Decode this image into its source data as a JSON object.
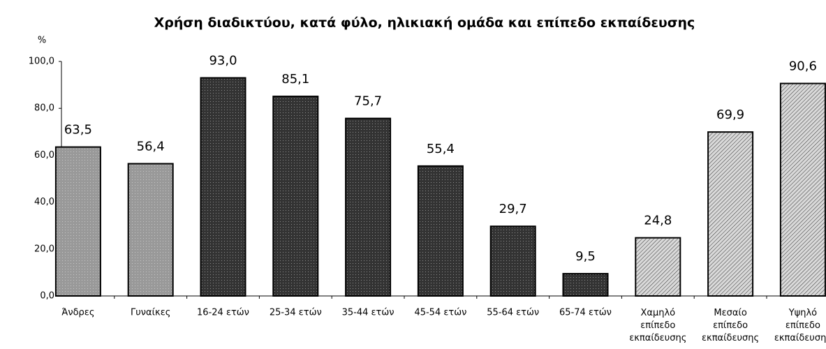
{
  "chart_data": {
    "type": "bar",
    "title": "Χρήση διαδικτύου,  κατά φύλο, ηλικιακή ομάδα και επίπεδο εκπαίδευσης",
    "y_label": "%",
    "categories": [
      "Άνδρες",
      "Γυναίκες",
      "16-24 ετών",
      "25-34 ετών",
      "35-44 ετών",
      "45-54 ετών",
      "55-64 ετών",
      "65-74 ετών",
      "Χαμηλό\nεπίπεδο\nεκπαίδευσης",
      "Μεσαίο\nεπίπεδο\nεκπαίδευσης",
      "Υψηλό\nεπίπεδο\nεκπαίδευσης"
    ],
    "values": [
      63.5,
      56.4,
      93.0,
      85.1,
      75.7,
      55.4,
      29.7,
      9.5,
      24.8,
      69.9,
      90.6
    ],
    "value_labels": [
      "63,5",
      "56,4",
      "93,0",
      "85,1",
      "75,7",
      "55,4",
      "29,7",
      "9,5",
      "24,8",
      "69,9",
      "90,6"
    ],
    "colors": [
      "#999999",
      "#999999",
      "#333333",
      "#333333",
      "#333333",
      "#333333",
      "#333333",
      "#333333",
      "#d9d9d9",
      "#d9d9d9",
      "#d9d9d9"
    ],
    "patterns": [
      "dots",
      "dots",
      "dots",
      "dots",
      "dots",
      "dots",
      "dots",
      "dots",
      "hatch",
      "hatch",
      "hatch"
    ],
    "ylim": [
      0,
      100
    ],
    "yticks": [
      {
        "value": 0,
        "label": "0,0"
      },
      {
        "value": 20,
        "label": "20,0"
      },
      {
        "value": 40,
        "label": "40,0"
      },
      {
        "value": 60,
        "label": "60,0"
      },
      {
        "value": 80,
        "label": "80,0"
      },
      {
        "value": 100,
        "label": "100,0"
      }
    ],
    "grid": false
  }
}
